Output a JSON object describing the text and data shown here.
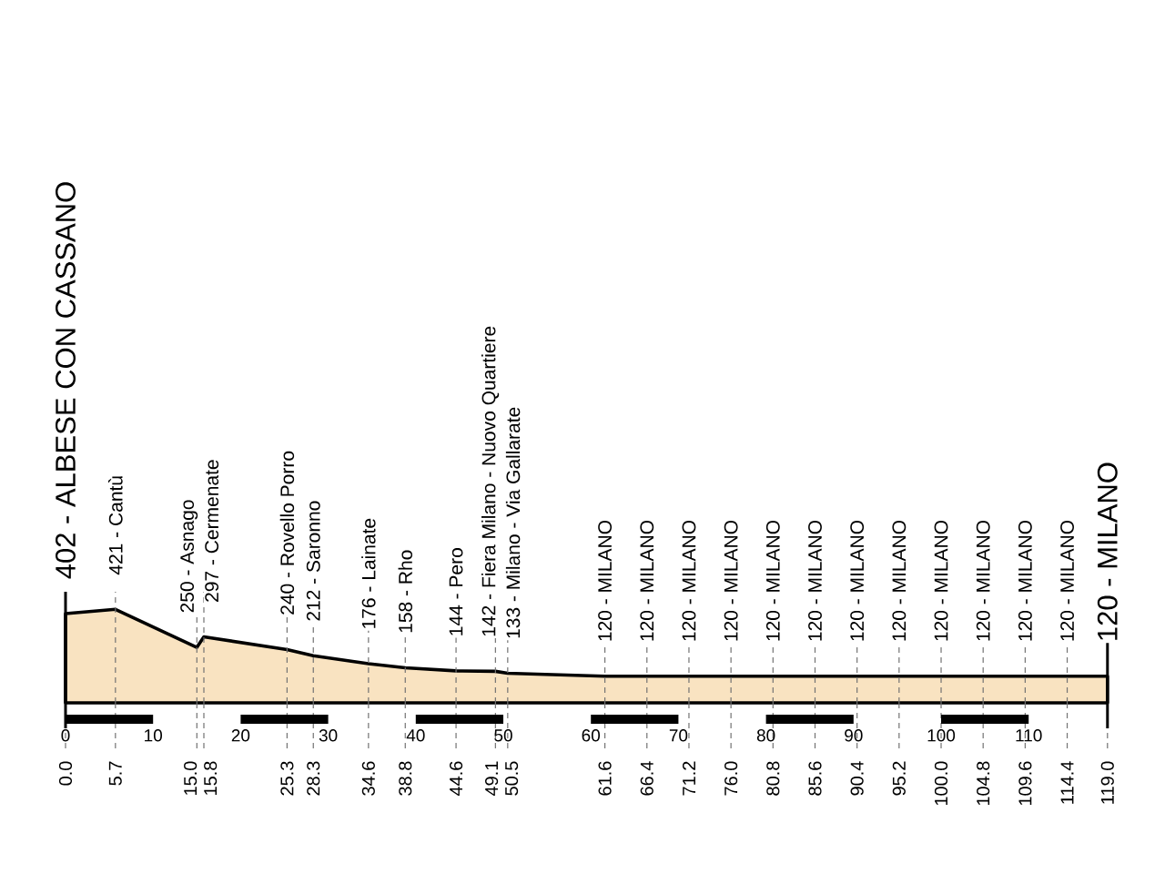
{
  "chart_data": {
    "type": "area",
    "x": [
      0,
      5.7,
      15.0,
      15.8,
      25.3,
      28.3,
      34.6,
      38.8,
      44.6,
      49.1,
      50.5,
      61.6,
      66.4,
      71.2,
      76.0,
      80.8,
      85.6,
      90.4,
      95.2,
      100.0,
      104.8,
      109.6,
      114.4,
      119.0
    ],
    "values": [
      402,
      421,
      250,
      297,
      240,
      212,
      176,
      158,
      144,
      142,
      133,
      120,
      120,
      120,
      120,
      120,
      120,
      120,
      120,
      120,
      120,
      120,
      120,
      120
    ],
    "value_labels": [
      "402 - ALBESE CON CASSANO",
      "421 - Cantù",
      "250 - Asnago",
      "297 - Cermenate",
      "240 - Rovello Porro",
      "212 - Saronno",
      "176 - Lainate",
      "158 - Rho",
      "144 - Pero",
      "142 - Fiera Milano - Nuovo Quartiere",
      "133 - Milano - Via Gallarate",
      "120 - MILANO",
      "120 - MILANO",
      "120 - MILANO",
      "120 - MILANO",
      "120 - MILANO",
      "120 - MILANO",
      "120 - MILANO",
      "120 - MILANO",
      "120 - MILANO",
      "120 - MILANO",
      "120 - MILANO",
      "120 - MILANO",
      "120 - MILANO"
    ],
    "color": "#f9e3c1",
    "xlim": [
      0,
      119
    ],
    "xticks": [
      {
        "value": 0,
        "label": "0.0"
      },
      5.7,
      {
        "value": 15,
        "label": "15.0"
      },
      15.8,
      25.3,
      28.3,
      34.6,
      38.8,
      44.6,
      49.1,
      50.5,
      61.6,
      66.4,
      71.2,
      {
        "value": 76,
        "label": "76.0"
      },
      80.8,
      85.6,
      90.4,
      95.2,
      {
        "value": 100,
        "label": "100.0"
      },
      104.8,
      109.6,
      114.4,
      {
        "value": 119,
        "label": "119.0"
      }
    ],
    "x2lim": [
      0,
      119
    ],
    "x2ticks": [
      0,
      10,
      20,
      30,
      40,
      50,
      60,
      70,
      80,
      90,
      100,
      110
    ],
    "ylim": [
      0,
      500
    ],
    "grid": "x",
    "tick_labels": "x"
  }
}
